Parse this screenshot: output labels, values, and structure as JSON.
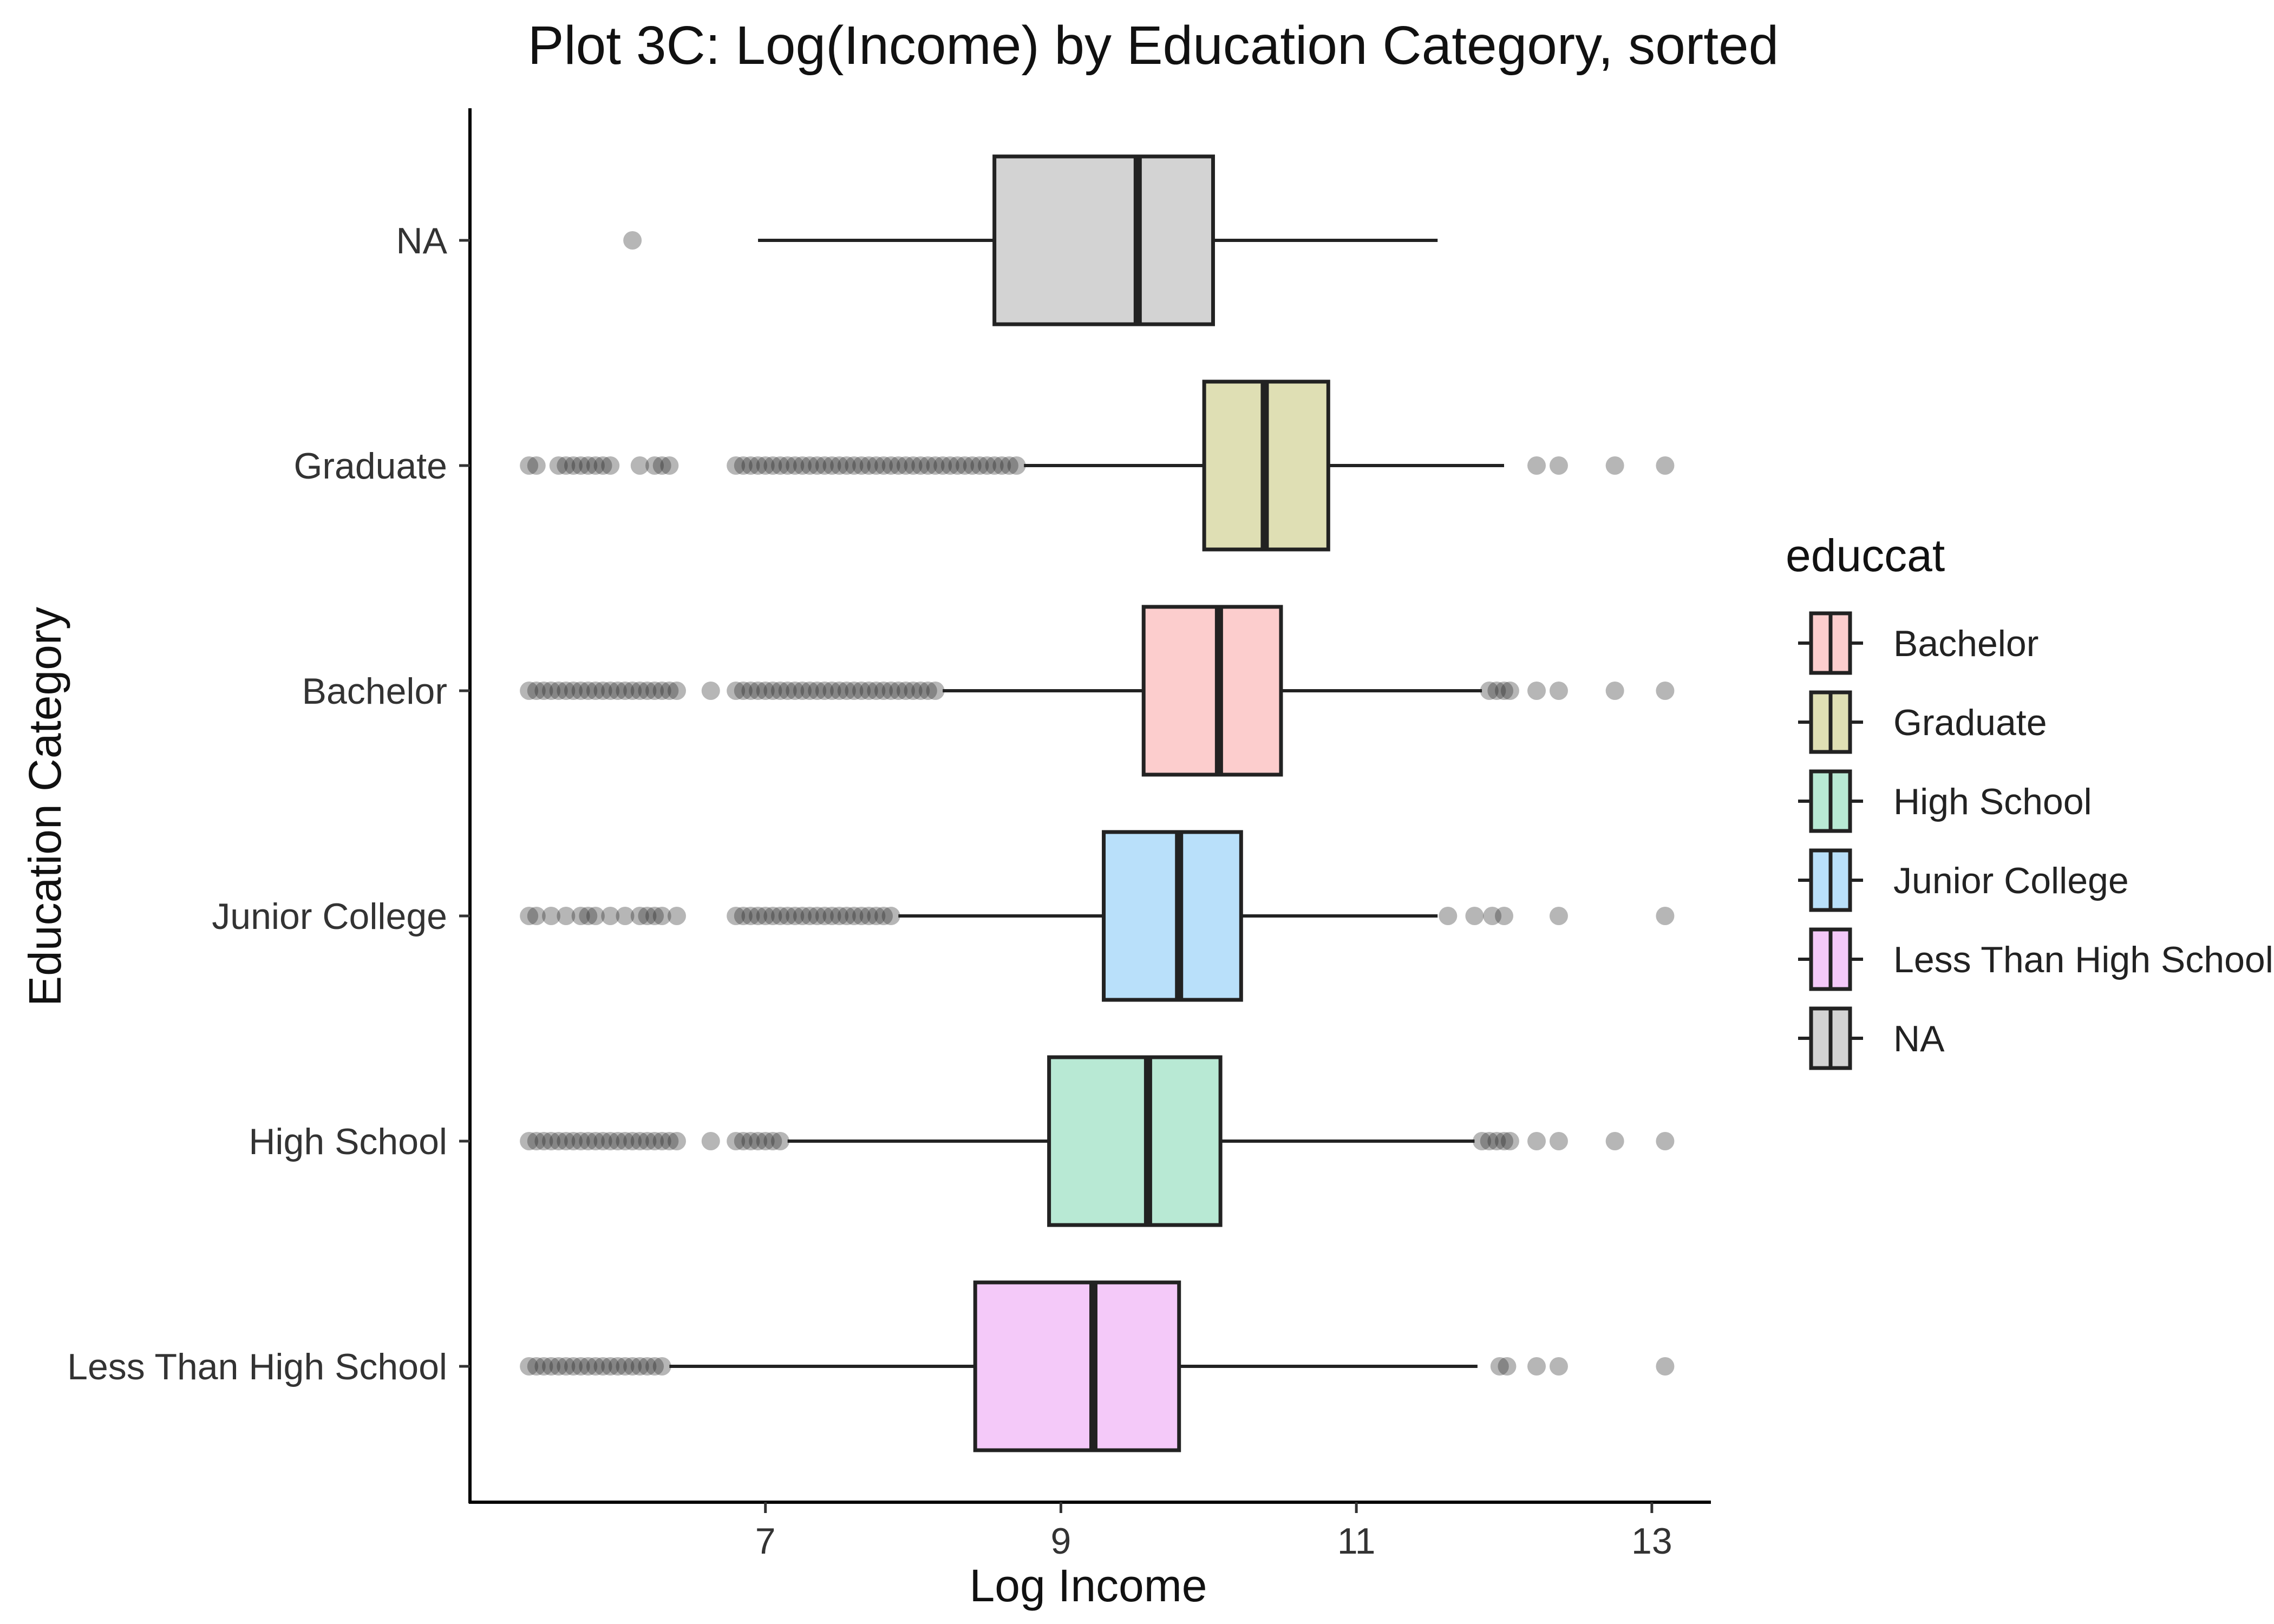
{
  "chart_data": {
    "type": "boxplot",
    "orientation": "horizontal",
    "title": "Plot 3C: Log(Income) by Education Category, sorted",
    "xlabel": "Log Income",
    "ylabel": "Education Category",
    "xlim": [
      5.0,
      13.4
    ],
    "xticks": [
      7,
      9,
      11,
      13
    ],
    "legend": {
      "title": "educcat",
      "position": "right",
      "entries": [
        {
          "label": "Bachelor",
          "color": "#FCCDCD"
        },
        {
          "label": "Graduate",
          "color": "#DFDFB4"
        },
        {
          "label": "High School",
          "color": "#B8E9D4"
        },
        {
          "label": "Junior College",
          "color": "#B9E0FA"
        },
        {
          "label": "Less Than High School",
          "color": "#F4C9F9"
        },
        {
          "label": "NA",
          "color": "#D3D3D3"
        }
      ]
    },
    "categories": [
      "NA",
      "Graduate",
      "Bachelor",
      "Junior College",
      "High School",
      "Less Than High School"
    ],
    "boxes": [
      {
        "category": "NA",
        "color": "#D3D3D3",
        "whisker_low": 6.95,
        "q1": 8.55,
        "median": 9.52,
        "q3": 10.03,
        "whisker_high": 11.55,
        "outliers": [
          6.1
        ]
      },
      {
        "category": "Graduate",
        "color": "#DFDFB4",
        "whisker_low": 8.75,
        "q1": 9.97,
        "median": 10.38,
        "q3": 10.81,
        "whisker_high": 12.0,
        "outliers": [
          5.4,
          5.45,
          5.6,
          5.65,
          5.7,
          5.75,
          5.8,
          5.85,
          5.9,
          5.95,
          6.15,
          6.25,
          6.3,
          6.35,
          6.8,
          6.85,
          6.9,
          6.95,
          7.0,
          7.05,
          7.1,
          7.15,
          7.2,
          7.25,
          7.3,
          7.35,
          7.4,
          7.45,
          7.5,
          7.55,
          7.6,
          7.65,
          7.7,
          7.75,
          7.8,
          7.85,
          7.9,
          7.95,
          8.0,
          8.05,
          8.1,
          8.15,
          8.2,
          8.25,
          8.3,
          8.35,
          8.4,
          8.45,
          8.5,
          8.55,
          8.6,
          8.65,
          8.7,
          12.22,
          12.37,
          12.75,
          13.09
        ]
      },
      {
        "category": "Bachelor",
        "color": "#FCCDCD",
        "whisker_low": 8.2,
        "q1": 9.56,
        "median": 10.07,
        "q3": 10.49,
        "whisker_high": 11.85,
        "outliers": [
          5.4,
          5.45,
          5.5,
          5.55,
          5.6,
          5.65,
          5.7,
          5.75,
          5.8,
          5.85,
          5.9,
          5.95,
          6.0,
          6.05,
          6.1,
          6.15,
          6.2,
          6.25,
          6.3,
          6.35,
          6.4,
          6.63,
          6.8,
          6.85,
          6.9,
          6.95,
          7.0,
          7.05,
          7.1,
          7.15,
          7.2,
          7.25,
          7.3,
          7.35,
          7.4,
          7.45,
          7.5,
          7.55,
          7.6,
          7.65,
          7.7,
          7.75,
          7.8,
          7.85,
          7.9,
          7.95,
          8.0,
          8.05,
          8.1,
          8.15,
          11.9,
          11.95,
          12.0,
          12.04,
          12.22,
          12.37,
          12.75,
          13.09
        ]
      },
      {
        "category": "Junior College",
        "color": "#B9E0FA",
        "whisker_low": 7.9,
        "q1": 9.29,
        "median": 9.8,
        "q3": 10.22,
        "whisker_high": 11.55,
        "outliers": [
          5.4,
          5.45,
          5.55,
          5.65,
          5.75,
          5.8,
          5.85,
          5.95,
          6.05,
          6.15,
          6.2,
          6.25,
          6.3,
          6.4,
          6.8,
          6.85,
          6.9,
          6.95,
          7.0,
          7.05,
          7.1,
          7.15,
          7.2,
          7.25,
          7.3,
          7.35,
          7.4,
          7.45,
          7.5,
          7.55,
          7.6,
          7.65,
          7.7,
          7.75,
          7.8,
          7.85,
          11.62,
          11.8,
          11.92,
          12.0,
          12.37,
          13.09
        ]
      },
      {
        "category": "High School",
        "color": "#B8E9D4",
        "whisker_low": 7.15,
        "q1": 8.92,
        "median": 9.59,
        "q3": 10.08,
        "whisker_high": 11.8,
        "outliers": [
          5.4,
          5.45,
          5.5,
          5.55,
          5.6,
          5.65,
          5.7,
          5.75,
          5.8,
          5.85,
          5.9,
          5.95,
          6.0,
          6.05,
          6.1,
          6.15,
          6.2,
          6.25,
          6.3,
          6.35,
          6.4,
          6.63,
          6.8,
          6.85,
          6.9,
          6.95,
          7.0,
          7.05,
          7.1,
          11.85,
          11.9,
          11.95,
          12.0,
          12.04,
          12.22,
          12.37,
          12.75,
          13.09
        ]
      },
      {
        "category": "Less Than High School",
        "color": "#F4C9F9",
        "whisker_low": 6.35,
        "q1": 8.42,
        "median": 9.22,
        "q3": 9.8,
        "whisker_high": 11.82,
        "outliers": [
          5.4,
          5.45,
          5.5,
          5.55,
          5.6,
          5.65,
          5.7,
          5.75,
          5.8,
          5.85,
          5.9,
          5.95,
          6.0,
          6.05,
          6.1,
          6.15,
          6.2,
          6.25,
          6.3,
          11.97,
          12.02,
          12.22,
          12.37,
          13.09
        ]
      }
    ]
  }
}
